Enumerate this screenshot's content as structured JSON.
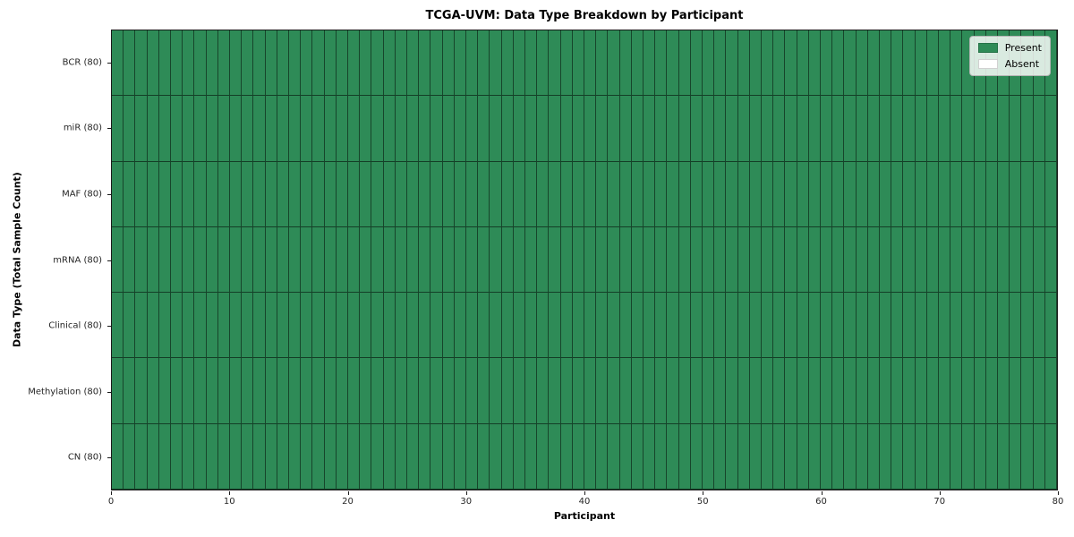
{
  "chart_data": {
    "type": "heatmap",
    "title": "TCGA-UVM: Data Type Breakdown by Participant",
    "xlabel": "Participant",
    "ylabel": "Data Type (Total Sample Count)",
    "xlim": [
      0,
      80
    ],
    "x_ticks": [
      0,
      10,
      20,
      30,
      40,
      50,
      60,
      70,
      80
    ],
    "n_participants": 80,
    "rows": [
      {
        "label": "BCR (80)",
        "data_type": "BCR",
        "total_samples": 80,
        "present_count": 80,
        "absent_count": 0
      },
      {
        "label": "miR (80)",
        "data_type": "miR",
        "total_samples": 80,
        "present_count": 80,
        "absent_count": 0
      },
      {
        "label": "MAF (80)",
        "data_type": "MAF",
        "total_samples": 80,
        "present_count": 80,
        "absent_count": 0
      },
      {
        "label": "mRNA (80)",
        "data_type": "mRNA",
        "total_samples": 80,
        "present_count": 80,
        "absent_count": 0
      },
      {
        "label": "Clinical (80)",
        "data_type": "Clinical",
        "total_samples": 80,
        "present_count": 80,
        "absent_count": 0
      },
      {
        "label": "Methylation (80)",
        "data_type": "Methylation",
        "total_samples": 80,
        "present_count": 80,
        "absent_count": 0
      },
      {
        "label": "CN (80)",
        "data_type": "CN",
        "total_samples": 80,
        "present_count": 80,
        "absent_count": 0
      }
    ],
    "legend": {
      "position": "upper right",
      "entries": [
        {
          "label": "Present",
          "color": "#2E8B57"
        },
        {
          "label": "Absent",
          "color": "#FFFFFF"
        }
      ]
    },
    "colors": {
      "present": "#2E8B57",
      "absent": "#FFFFFF",
      "cell_edge": "#1A1A1A",
      "axis": "#1A1A1A"
    },
    "grid": false
  }
}
